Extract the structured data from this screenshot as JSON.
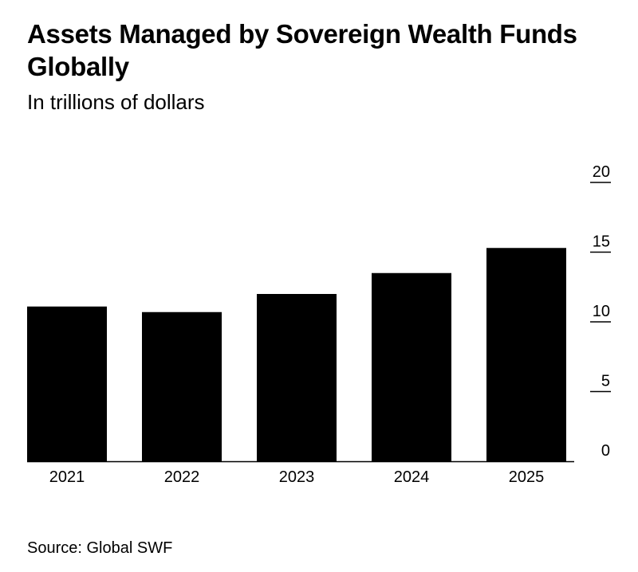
{
  "title": "Assets Managed by Sovereign Wealth Funds Globally",
  "subtitle": "In trillions of dollars",
  "source": "Source: Global SWF",
  "colors": {
    "bar": "#000000",
    "axis": "#000000",
    "background": "#ffffff"
  },
  "chart_data": {
    "type": "bar",
    "title": "Assets Managed by Sovereign Wealth Funds Globally",
    "subtitle": "In trillions of dollars",
    "categories": [
      "2021",
      "2022",
      "2023",
      "2024",
      "2025"
    ],
    "values": [
      11.1,
      10.7,
      12.0,
      13.5,
      15.3
    ],
    "ylim": [
      0,
      20
    ],
    "yticks": [
      "0",
      "5",
      "10",
      "15",
      "20"
    ],
    "ytick_values": [
      0,
      5,
      10,
      15,
      20
    ],
    "y_axis_position": "right",
    "grid": false,
    "legend": "none"
  }
}
